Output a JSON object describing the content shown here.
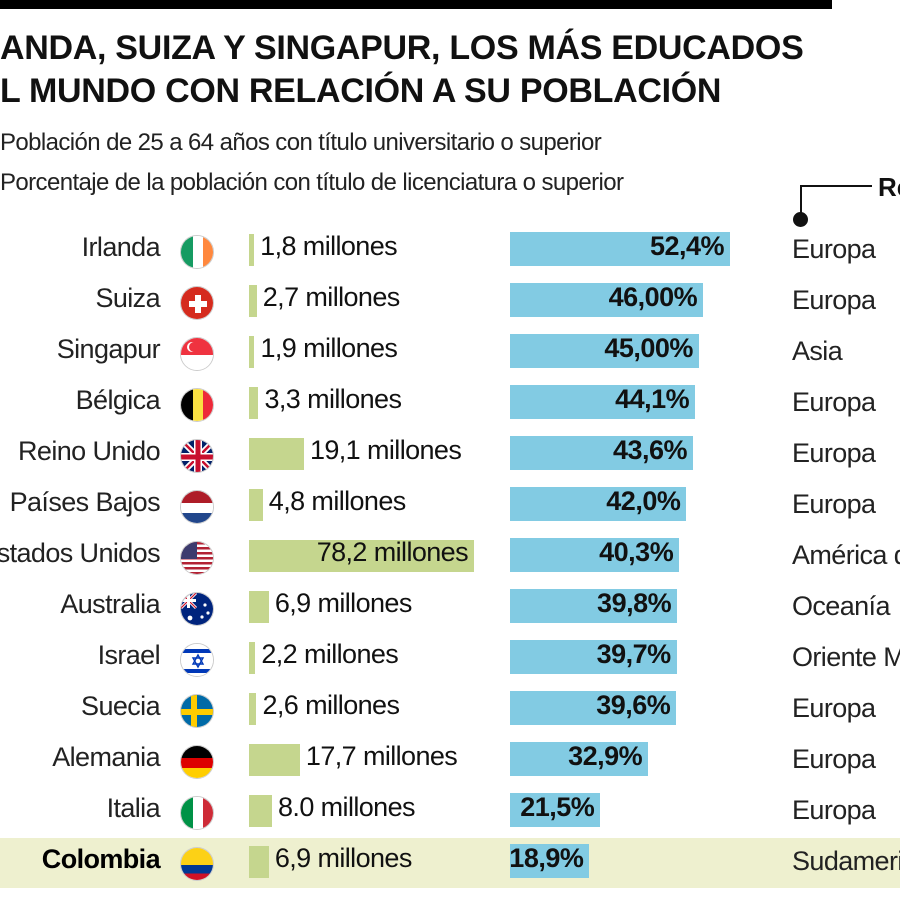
{
  "title": {
    "line1": "ANDA, SUIZA Y SINGAPUR, LOS MÁS EDUCADOS",
    "line2": "L MUNDO CON RELACIÓN A SU POBLACIÓN"
  },
  "legend": {
    "population": "Población de 25 a 64 años con título universitario o superior",
    "percentage": "Porcentaje de la población con título de licenciatura o superior"
  },
  "region_header": "Re",
  "colors": {
    "population_bar": "#c5d68e",
    "percentage_bar": "#82cbe3",
    "highlight_row": "#eef0cf"
  },
  "chart_data": {
    "type": "bar",
    "categories": [
      "Irlanda",
      "Suiza",
      "Singapur",
      "Bélgica",
      "Reino Unido",
      "Países Bajos",
      "Estados Unidos",
      "Australia",
      "Israel",
      "Suecia",
      "Alemania",
      "Italia",
      "Colombia"
    ],
    "series": [
      {
        "values": [
          1.8,
          2.7,
          1.9,
          3.3,
          19.1,
          4.8,
          78.2,
          6.9,
          2.2,
          2.6,
          17.7,
          8.0,
          6.9
        ],
        "labels": [
          "1,8 millones",
          "2,7 millones",
          "1,9 millones",
          "3,3 millones",
          "19,1 millones",
          "4,8 millones",
          "78,2 millones",
          "6,9 millones",
          "2,2 millones",
          "2,6 millones",
          "17,7 millones",
          "8.0 millones",
          "6,9 millones"
        ]
      },
      {
        "values": [
          52.4,
          46.0,
          45.0,
          44.1,
          43.6,
          42.0,
          40.3,
          39.8,
          39.7,
          39.6,
          32.9,
          21.5,
          18.9
        ],
        "labels": [
          "52,4%",
          "46,00%",
          "45,00%",
          "44,1%",
          "43,6%",
          "42,0%",
          "40,3%",
          "39,8%",
          "39,7%",
          "39,6%",
          "32,9%",
          "21,5%",
          "18,9%"
        ]
      }
    ],
    "regions": [
      "Europa",
      "Europa",
      "Asia",
      "Europa",
      "Europa",
      "Europa",
      "América de",
      "Oceanía",
      "Oriente Me",
      "Europa",
      "Europa",
      "Europa",
      "Sudameric"
    ],
    "flags": [
      "ireland-flag-icon",
      "switzerland-flag-icon",
      "singapore-flag-icon",
      "belgium-flag-icon",
      "uk-flag-icon",
      "netherlands-flag-icon",
      "usa-flag-icon",
      "australia-flag-icon",
      "israel-flag-icon",
      "sweden-flag-icon",
      "germany-flag-icon",
      "italy-flag-icon",
      "colombia-flag-icon"
    ],
    "highlight": "Colombia"
  }
}
